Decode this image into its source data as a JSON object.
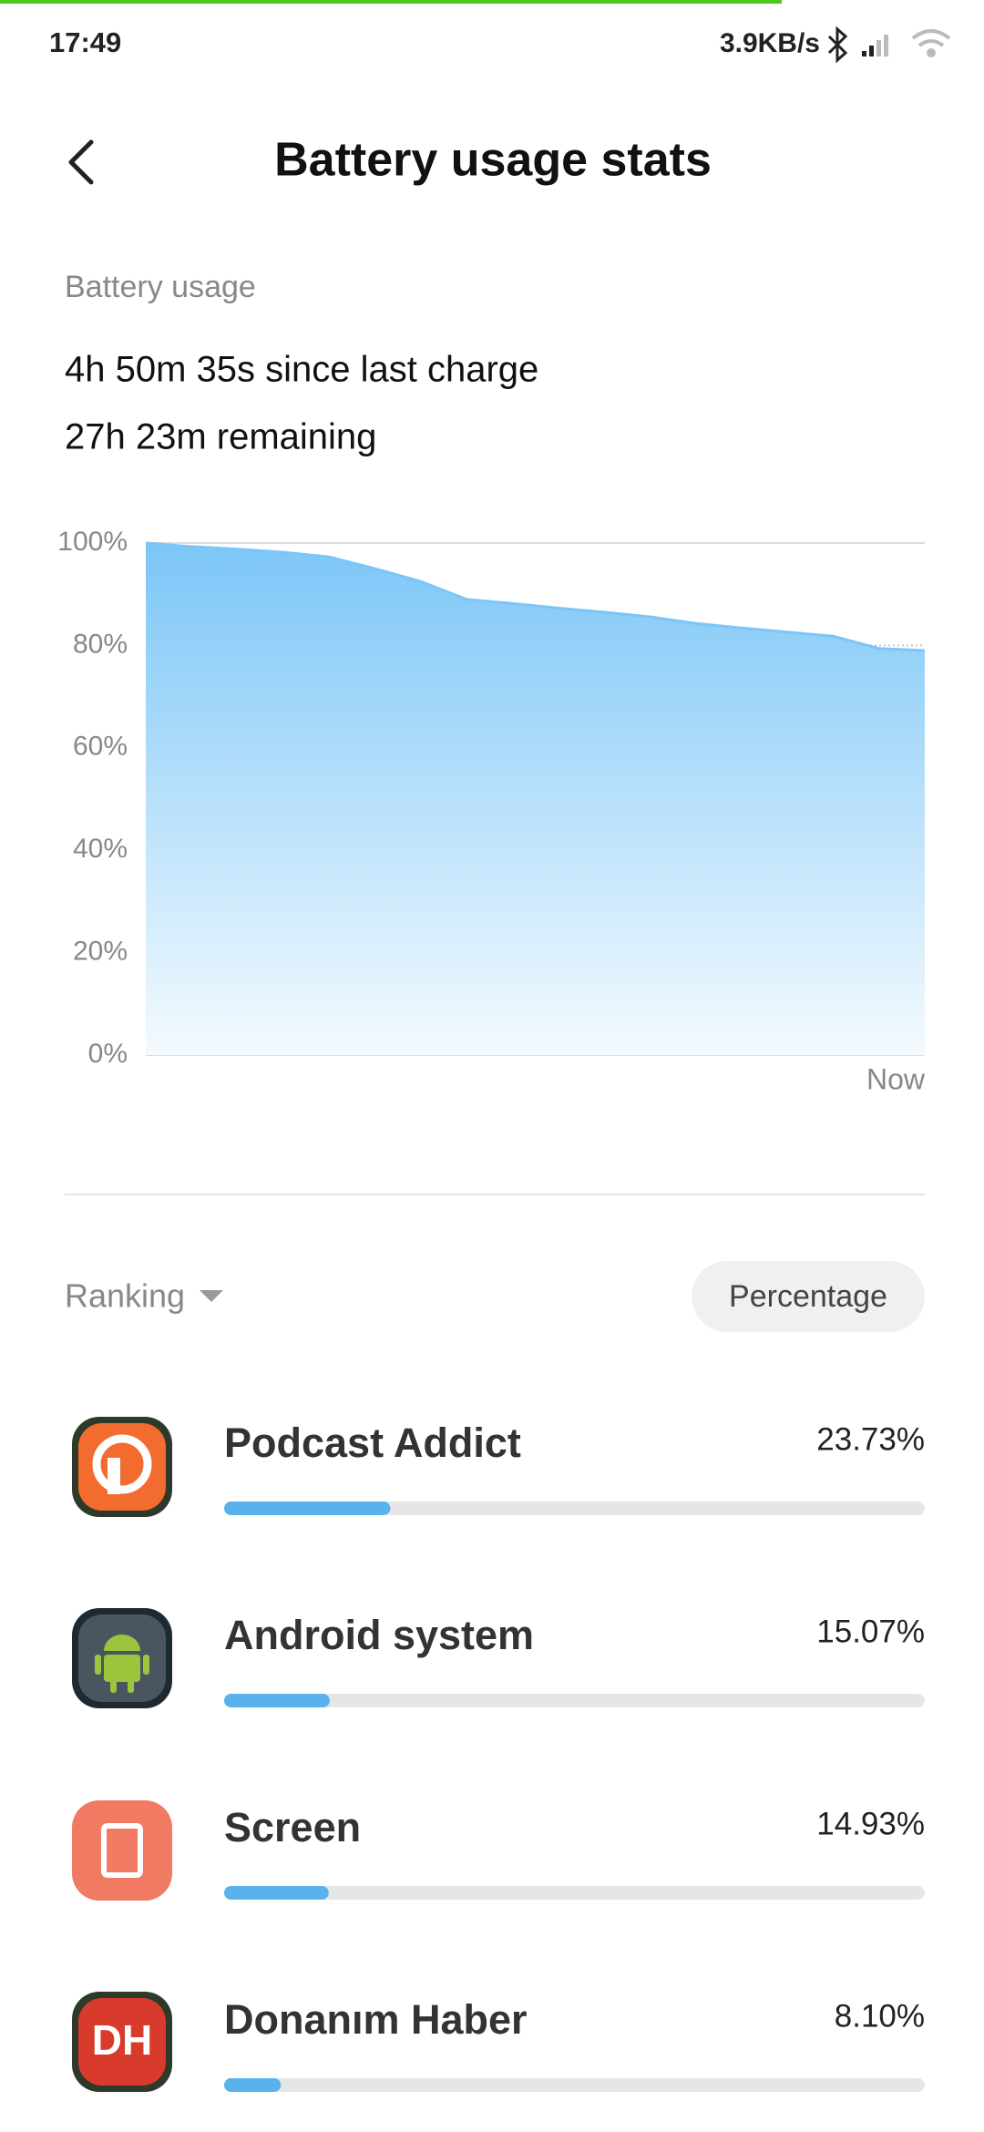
{
  "status_bar": {
    "time": "17:49",
    "network_speed": "3.9KB/s"
  },
  "header": {
    "title": "Battery usage stats"
  },
  "summary": {
    "label": "Battery usage",
    "since_charge": "4h 50m 35s since last charge",
    "remaining": "27h 23m remaining"
  },
  "chart_data": {
    "type": "area",
    "categories": [
      null,
      null,
      null,
      null,
      null,
      null,
      null,
      null,
      null,
      null,
      null,
      null,
      null,
      null,
      null,
      null,
      null,
      "Now"
    ],
    "values": [
      100,
      99.3,
      98.8,
      98.2,
      97.3,
      95,
      92.5,
      89,
      88.2,
      87.3,
      86.5,
      85.6,
      84.3,
      83.4,
      82.6,
      81.8,
      79.4,
      79
    ],
    "color": "#7cc6f7",
    "ylim": [
      0,
      100
    ],
    "yticks": [
      {
        "value": 0,
        "label": "0%"
      },
      {
        "value": 20,
        "label": "20%"
      },
      {
        "value": 40,
        "label": "40%"
      },
      {
        "value": 60,
        "label": "60%"
      },
      {
        "value": 80,
        "label": "80%"
      },
      {
        "value": 100,
        "label": "100%"
      }
    ],
    "grid": true
  },
  "ranking": {
    "sort_label": "Ranking",
    "mode_button": "Percentage"
  },
  "apps": [
    {
      "name": "Podcast Addict",
      "value": 23.73,
      "value_label": "23.73%"
    },
    {
      "name": "Android system",
      "value": 15.07,
      "value_label": "15.07%"
    },
    {
      "name": "Screen",
      "value": 14.93,
      "value_label": "14.93%"
    },
    {
      "name": "Donanım Haber",
      "value": 8.1,
      "value_label": "8.10%",
      "icon_text": "DH"
    }
  ]
}
